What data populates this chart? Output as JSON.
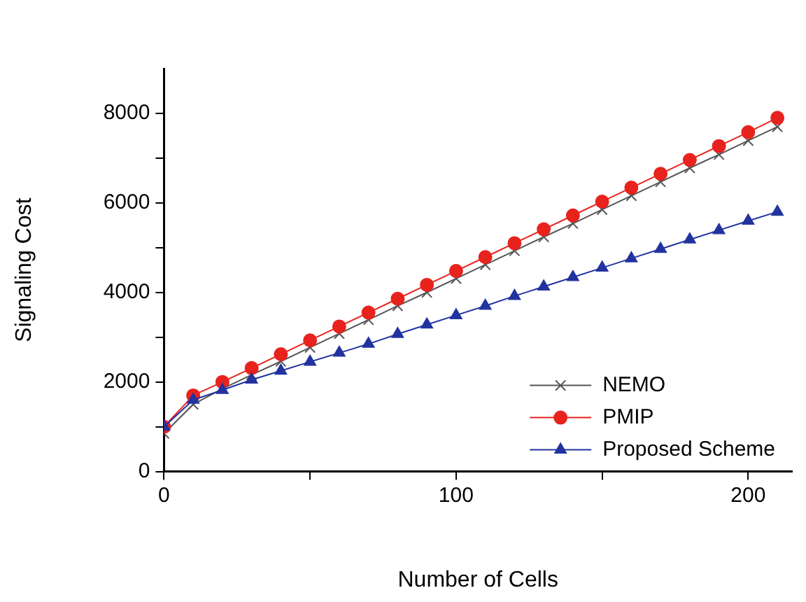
{
  "chart_data": {
    "type": "line",
    "xlabel": "Number of Cells",
    "ylabel": "Signaling Cost",
    "x": [
      0,
      10,
      20,
      30,
      40,
      50,
      60,
      70,
      80,
      90,
      100,
      110,
      120,
      130,
      140,
      150,
      160,
      170,
      180,
      190,
      200,
      210
    ],
    "series": [
      {
        "name": "NEMO",
        "color": "#555555",
        "marker": "cross",
        "values": [
          850,
          1500,
          1850,
          2160,
          2460,
          2770,
          3080,
          3390,
          3700,
          4000,
          4310,
          4620,
          4930,
          5240,
          5540,
          5850,
          6160,
          6470,
          6780,
          7080,
          7390,
          7700
        ]
      },
      {
        "name": "PMIP",
        "color": "#e8231e",
        "marker": "circle",
        "values": [
          1000,
          1700,
          2000,
          2310,
          2620,
          2930,
          3240,
          3550,
          3860,
          4170,
          4480,
          4790,
          5100,
          5410,
          5720,
          6030,
          6340,
          6650,
          6960,
          7270,
          7580,
          7900
        ]
      },
      {
        "name": "Proposed Scheme",
        "color": "#2233a0",
        "marker": "triangle",
        "values": [
          1000,
          1600,
          1820,
          2050,
          2250,
          2450,
          2650,
          2850,
          3070,
          3280,
          3490,
          3700,
          3920,
          4130,
          4340,
          4550,
          4760,
          4970,
          5180,
          5390,
          5600,
          5800
        ]
      }
    ],
    "xlim": [
      0,
      215
    ],
    "xticks": [
      0,
      {
        "value": 50,
        "label": null
      },
      100,
      {
        "value": 150,
        "label": null
      },
      200
    ],
    "ylim": [
      0,
      9000
    ],
    "yticks": [
      0,
      {
        "value": 1000,
        "label": null
      },
      2000,
      {
        "value": 3000,
        "label": null
      },
      4000,
      {
        "value": 5000,
        "label": null
      },
      6000,
      {
        "value": 7000,
        "label": null
      },
      8000
    ],
    "grid": false,
    "legend": "bottom right",
    "line_style": "solid"
  }
}
